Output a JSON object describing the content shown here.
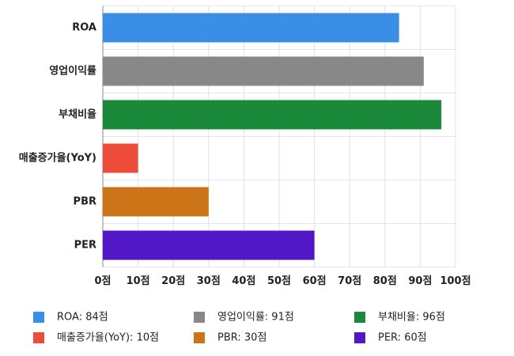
{
  "chart_data": {
    "type": "hbar",
    "categories": [
      "ROA",
      "영업이익률",
      "부채비율",
      "매출증가율(YoY)",
      "PBR",
      "PER"
    ],
    "values": [
      84,
      91,
      96,
      10,
      30,
      60
    ],
    "colors": [
      "#3a8ee6",
      "#888888",
      "#1a8a3a",
      "#ee4c3a",
      "#cc7418",
      "#5218c8"
    ],
    "legend": [
      "ROA: 84점",
      "영업이익률: 91점",
      "부채비율: 96점",
      "매출증가율(YoY): 10점",
      "PBR: 30점",
      "PER: 60점"
    ],
    "xlim": [
      0,
      100
    ],
    "xticks": [
      {
        "value": 0,
        "label": "0점"
      },
      {
        "value": 10,
        "label": "10점"
      },
      {
        "value": 20,
        "label": "20점"
      },
      {
        "value": 30,
        "label": "30점"
      },
      {
        "value": 40,
        "label": "40점"
      },
      {
        "value": 50,
        "label": "50점"
      },
      {
        "value": 60,
        "label": "60점"
      },
      {
        "value": 70,
        "label": "70점"
      },
      {
        "value": 80,
        "label": "80점"
      },
      {
        "value": 90,
        "label": "90점"
      },
      {
        "value": 100,
        "label": "100점"
      }
    ],
    "grid": true
  }
}
